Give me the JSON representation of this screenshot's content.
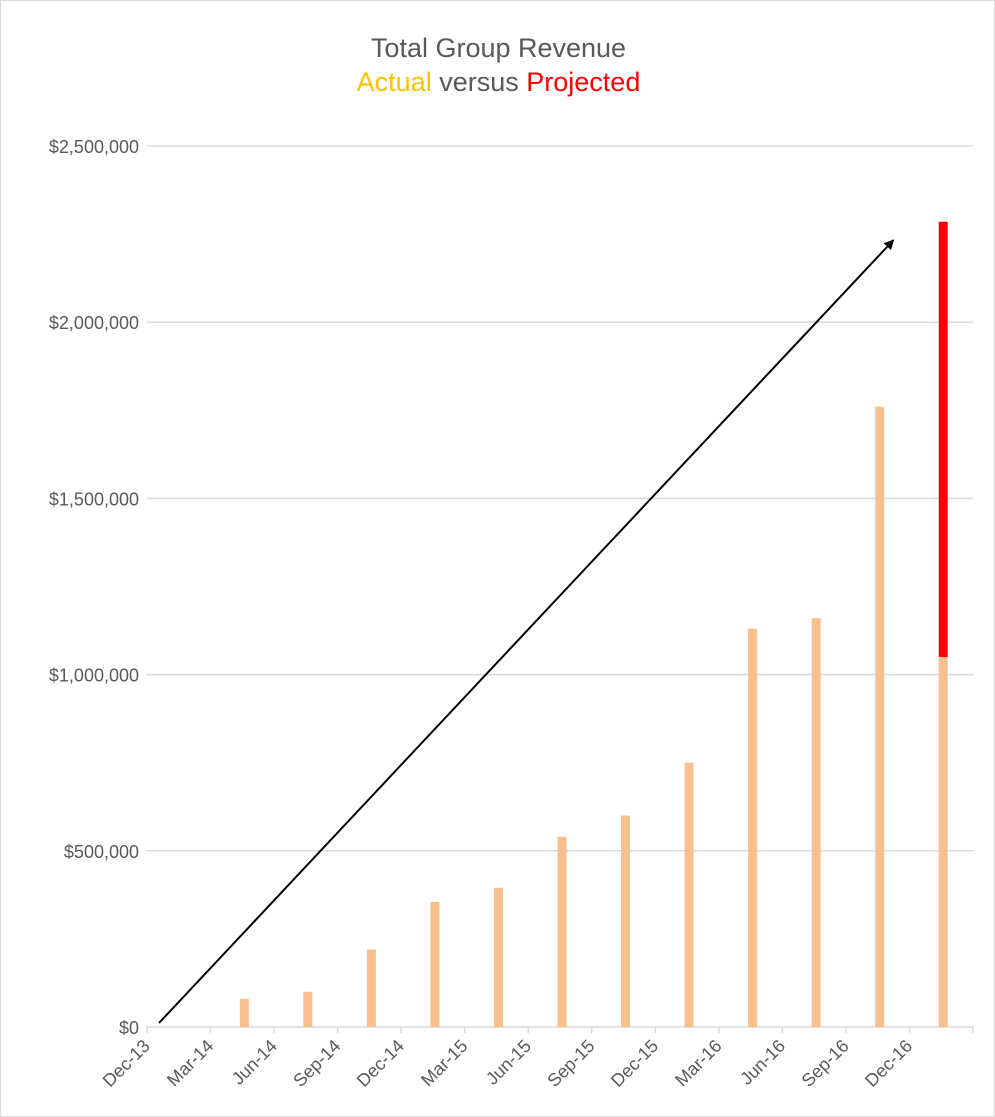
{
  "colors": {
    "actual": "#f8c08e",
    "projected": "#ff0000",
    "actual_text": "#ffc000",
    "title_text": "#595959",
    "grid": "#d9d9d9",
    "axis_text": "#595959",
    "arrow": "#000000"
  },
  "chart_data": {
    "type": "bar",
    "title": "Total Group Revenue",
    "subtitle": {
      "part1": "Actual",
      "part2": "versus",
      "part3": "Projected"
    },
    "xlabel": "",
    "ylabel": "",
    "ylim": [
      0,
      2500000
    ],
    "y_ticks": [
      0,
      500000,
      1000000,
      1500000,
      2000000,
      2500000
    ],
    "y_tick_labels": [
      "$0",
      "$500,000",
      "$1,000,000",
      "$1,500,000",
      "$2,000,000",
      "$2,500,000"
    ],
    "grid": true,
    "legend": "none",
    "categories": [
      "Dec-13",
      "Mar-14",
      "Jun-14",
      "Sep-14",
      "Dec-14",
      "Mar-15",
      "Jun-15",
      "Sep-15",
      "Dec-15",
      "Mar-16",
      "Jun-16",
      "Sep-16",
      "Dec-16"
    ],
    "series": [
      {
        "values": [
          0,
          80000,
          100000,
          220000,
          355000,
          395000,
          540000,
          600000,
          750000,
          1130000,
          1160000,
          1760000,
          1050000
        ]
      },
      {
        "values": [
          0,
          0,
          0,
          0,
          0,
          0,
          0,
          0,
          0,
          0,
          0,
          0,
          1235000
        ]
      }
    ],
    "annotations": [
      {
        "type": "arrow",
        "from": [
          "Dec-13",
          0
        ],
        "to": [
          "Dec-16",
          2250000
        ]
      }
    ]
  }
}
